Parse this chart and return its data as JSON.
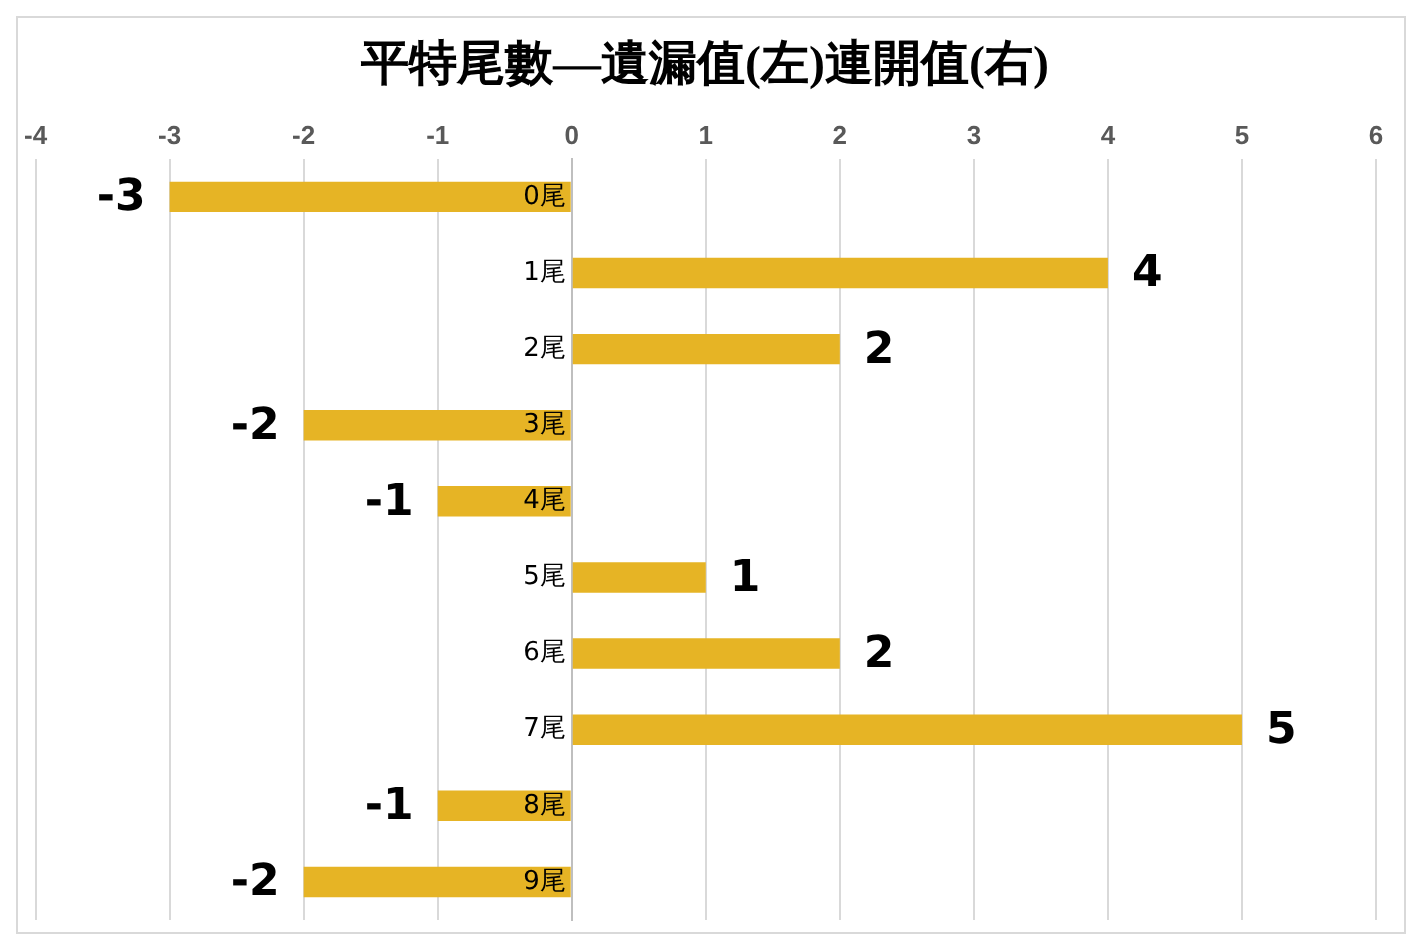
{
  "chart_data": {
    "type": "bar",
    "orientation": "horizontal",
    "title": "平特尾數—遺漏值(左)連開值(右)",
    "categories": [
      "0尾",
      "1尾",
      "2尾",
      "3尾",
      "4尾",
      "5尾",
      "6尾",
      "7尾",
      "8尾",
      "9尾"
    ],
    "values": [
      -3,
      4,
      2,
      -2,
      -1,
      1,
      2,
      5,
      -1,
      -2
    ],
    "color": "#e6b425",
    "xlim": [
      -4,
      6
    ],
    "xticks": [
      -4,
      -3,
      -2,
      -1,
      0,
      1,
      2,
      3,
      4,
      5,
      6
    ],
    "grid": "x",
    "legend": false,
    "data_labels": true
  }
}
